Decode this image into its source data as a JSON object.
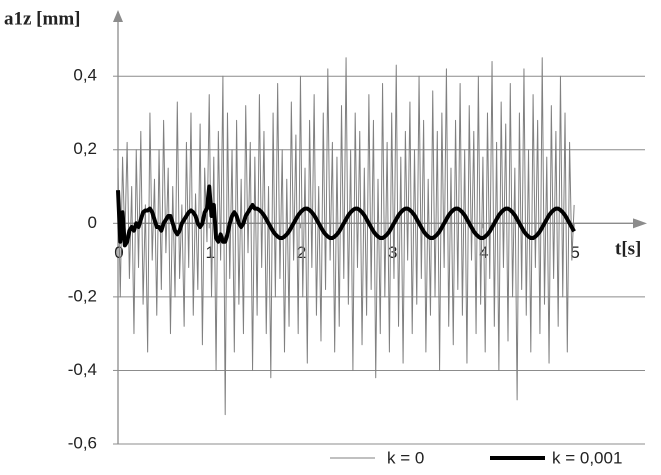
{
  "chart_data": {
    "type": "line",
    "y_label": "a1z [mm]",
    "x_label": "t[s]",
    "xlim": [
      0,
      5.7
    ],
    "ylim": [
      -0.6,
      0.58
    ],
    "xticks": [
      0,
      1,
      2,
      3,
      4,
      5
    ],
    "yticks": [
      {
        "value": -0.6,
        "label": "-0,6"
      },
      {
        "value": -0.4,
        "label": "-0,4"
      },
      {
        "value": -0.2,
        "label": "-0,2"
      },
      0,
      {
        "value": 0.2,
        "label": "0,2"
      },
      {
        "value": 0.4,
        "label": "0,4"
      }
    ],
    "grid": true,
    "legend": "bottom",
    "x": [
      0,
      0.025,
      0.05,
      0.075,
      0.1,
      0.125,
      0.15,
      0.175,
      0.2,
      0.225,
      0.25,
      0.275,
      0.3,
      0.325,
      0.35,
      0.375,
      0.4,
      0.425,
      0.45,
      0.475,
      0.5,
      0.525,
      0.55,
      0.575,
      0.6,
      0.625,
      0.65,
      0.675,
      0.7,
      0.725,
      0.75,
      0.775,
      0.8,
      0.825,
      0.85,
      0.875,
      0.9,
      0.925,
      0.95,
      0.975,
      1,
      1.025,
      1.05,
      1.075,
      1.1,
      1.125,
      1.15,
      1.175,
      1.2,
      1.225,
      1.25,
      1.275,
      1.3,
      1.325,
      1.35,
      1.375,
      1.4,
      1.425,
      1.45,
      1.475,
      1.5,
      1.525,
      1.55,
      1.575,
      1.6,
      1.625,
      1.65,
      1.675,
      1.7,
      1.725,
      1.75,
      1.775,
      1.8,
      1.825,
      1.85,
      1.875,
      1.9,
      1.925,
      1.95,
      1.975,
      2,
      2.025,
      2.05,
      2.075,
      2.1,
      2.125,
      2.15,
      2.175,
      2.2,
      2.225,
      2.25,
      2.275,
      2.3,
      2.325,
      2.35,
      2.375,
      2.4,
      2.425,
      2.45,
      2.475,
      2.5,
      2.525,
      2.55,
      2.575,
      2.6,
      2.625,
      2.65,
      2.675,
      2.7,
      2.725,
      2.75,
      2.775,
      2.8,
      2.825,
      2.85,
      2.875,
      2.9,
      2.925,
      2.95,
      2.975,
      3,
      3.025,
      3.05,
      3.075,
      3.1,
      3.125,
      3.15,
      3.175,
      3.2,
      3.225,
      3.25,
      3.275,
      3.3,
      3.325,
      3.35,
      3.375,
      3.4,
      3.425,
      3.45,
      3.475,
      3.5,
      3.525,
      3.55,
      3.575,
      3.6,
      3.625,
      3.65,
      3.675,
      3.7,
      3.725,
      3.75,
      3.775,
      3.8,
      3.825,
      3.85,
      3.875,
      3.9,
      3.925,
      3.95,
      3.975,
      4,
      4.025,
      4.05,
      4.075,
      4.1,
      4.125,
      4.15,
      4.175,
      4.2,
      4.225,
      4.25,
      4.275,
      4.3,
      4.325,
      4.35,
      4.375,
      4.4,
      4.425,
      4.45,
      4.475,
      4.5,
      4.525,
      4.55,
      4.575,
      4.6,
      4.625,
      4.65,
      4.675,
      4.7,
      4.725,
      4.75,
      4.775,
      4.8,
      4.825,
      4.85,
      4.875,
      4.9,
      4.925,
      4.95,
      4.975,
      5
    ],
    "series": [
      {
        "name": "k = 0",
        "color": "#808080",
        "values": [
          0.15,
          -0.2,
          0.18,
          -0.05,
          0.22,
          -0.15,
          0.1,
          -0.3,
          0.2,
          -0.12,
          0.25,
          -0.22,
          0.05,
          -0.35,
          0.3,
          -0.1,
          0.12,
          -0.25,
          0.2,
          -0.18,
          0.28,
          -0.08,
          0.15,
          -0.3,
          0.1,
          -0.2,
          0.33,
          -0.15,
          0.05,
          -0.28,
          0.22,
          -0.12,
          0.3,
          -0.25,
          0.08,
          -0.18,
          0.27,
          -0.33,
          0.15,
          -0.05,
          0.35,
          -0.2,
          0.18,
          -0.4,
          0.25,
          -0.1,
          0.4,
          -0.52,
          0.3,
          -0.15,
          0.2,
          -0.35,
          0.28,
          -0.22,
          0.12,
          -0.3,
          0.32,
          -0.08,
          0.22,
          -0.4,
          0.18,
          -0.25,
          0.35,
          -0.12,
          0.25,
          -0.3,
          0.1,
          -0.42,
          0.3,
          -0.2,
          0.38,
          -0.15,
          0.2,
          -0.35,
          0.12,
          -0.28,
          0.33,
          -0.1,
          0.24,
          -0.3,
          0.4,
          -0.2,
          0.15,
          -0.38,
          0.28,
          -0.12,
          0.35,
          -0.25,
          0.1,
          -0.32,
          0.3,
          -0.18,
          0.42,
          -0.1,
          0.22,
          -0.35,
          0.18,
          -0.28,
          0.32,
          -0.15,
          0.45,
          -0.22,
          0.2,
          -0.4,
          0.3,
          -0.12,
          0.25,
          -0.33,
          0.15,
          -0.25,
          0.35,
          -0.18,
          0.28,
          -0.42,
          0.12,
          -0.3,
          0.38,
          -0.2,
          0.22,
          -0.35,
          0.3,
          -0.15,
          0.43,
          -0.28,
          0.18,
          -0.38,
          0.25,
          -0.1,
          0.33,
          -0.3,
          0.2,
          -0.22,
          0.4,
          -0.15,
          0.28,
          -0.35,
          0.12,
          -0.25,
          0.36,
          -0.2,
          0.25,
          -0.4,
          0.3,
          -0.12,
          0.42,
          -0.28,
          0.15,
          -0.33,
          0.28,
          -0.18,
          0.38,
          -0.25,
          0.2,
          -0.38,
          0.32,
          -0.1,
          0.25,
          -0.3,
          0.4,
          -0.22,
          0.18,
          -0.35,
          0.3,
          -0.15,
          0.44,
          -0.28,
          0.22,
          -0.4,
          0.33,
          -0.12,
          0.27,
          -0.32,
          0.38,
          -0.2,
          0.15,
          -0.48,
          0.3,
          -0.18,
          0.42,
          -0.25,
          0.2,
          -0.35,
          0.35,
          -0.12,
          0.28,
          -0.3,
          0.45,
          -0.22,
          0.18,
          -0.38,
          0.32,
          -0.15,
          0.25,
          -0.28,
          0.4,
          -0.2,
          0.3,
          -0.35,
          0.22,
          -0.1,
          0.05
        ]
      },
      {
        "name": "k = 0,001",
        "color": "#000000",
        "values": [
          0.09,
          -0.05,
          0.03,
          -0.06,
          -0.05,
          -0.02,
          -0.01,
          -0.02,
          0,
          -0.01,
          0.01,
          0.03,
          0.035,
          0.035,
          0.04,
          0.03,
          0.01,
          -0.01,
          -0.01,
          -0.02,
          0,
          0.01,
          0.02,
          0.02,
          0,
          -0.02,
          -0.03,
          -0.02,
          0,
          0.01,
          0.02,
          0.03,
          0.035,
          0.03,
          0.02,
          0,
          -0.01,
          0,
          0.03,
          0.04,
          0.1,
          0.02,
          0.05,
          -0.04,
          -0.05,
          -0.03,
          -0.05,
          -0.05,
          -0.03,
          0,
          0.02,
          0.03,
          0.02,
          0,
          -0.01,
          0,
          0.02,
          0.03,
          0.04,
          0.05,
          0.04,
          0.04,
          0.036,
          0.03,
          0.022,
          0.011,
          0,
          -0.011,
          -0.022,
          -0.03,
          -0.036,
          -0.04,
          -0.04,
          -0.036,
          -0.03,
          -0.022,
          -0.011,
          0,
          0.011,
          0.022,
          0.03,
          0.036,
          0.04,
          0.04,
          0.036,
          0.03,
          0.022,
          0.011,
          0,
          -0.011,
          -0.022,
          -0.03,
          -0.036,
          -0.04,
          -0.04,
          -0.036,
          -0.03,
          -0.022,
          -0.011,
          0,
          0.011,
          0.022,
          0.03,
          0.036,
          0.04,
          0.04,
          0.036,
          0.03,
          0.022,
          0.011,
          0,
          -0.011,
          -0.022,
          -0.03,
          -0.036,
          -0.04,
          -0.04,
          -0.036,
          -0.03,
          -0.022,
          -0.011,
          0,
          0.011,
          0.022,
          0.03,
          0.036,
          0.04,
          0.04,
          0.036,
          0.03,
          0.022,
          0.011,
          0,
          -0.011,
          -0.022,
          -0.03,
          -0.036,
          -0.04,
          -0.04,
          -0.036,
          -0.03,
          -0.022,
          -0.011,
          0,
          0.011,
          0.022,
          0.03,
          0.036,
          0.04,
          0.04,
          0.036,
          0.03,
          0.022,
          0.011,
          0,
          -0.011,
          -0.022,
          -0.03,
          -0.036,
          -0.04,
          -0.04,
          -0.036,
          -0.03,
          -0.022,
          -0.011,
          0,
          0.011,
          0.022,
          0.03,
          0.036,
          0.04,
          0.04,
          0.036,
          0.03,
          0.022,
          0.011,
          0,
          -0.011,
          -0.022,
          -0.03,
          -0.036,
          -0.04,
          -0.04,
          -0.036,
          -0.03,
          -0.022,
          -0.011,
          0,
          0.011,
          0.022,
          0.03,
          0.036,
          0.04,
          0.04,
          0.036,
          0.03,
          0.022,
          0.011,
          0,
          -0.011,
          -0.022
        ]
      }
    ]
  }
}
